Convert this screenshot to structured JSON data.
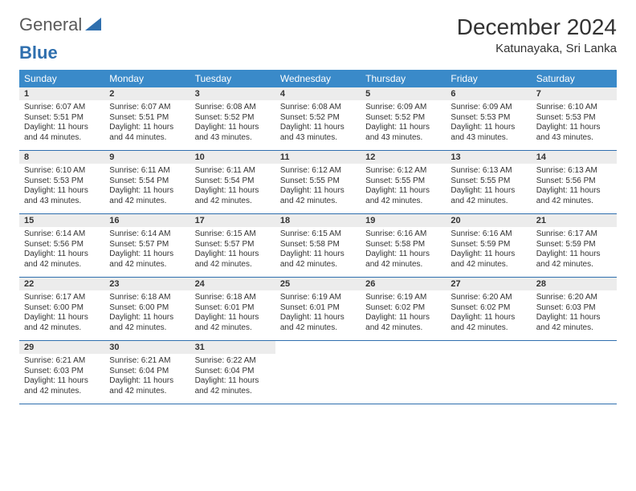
{
  "logo": {
    "text1": "General",
    "text2": "Blue"
  },
  "title": "December 2024",
  "location": "Katunayaka, Sri Lanka",
  "header_bg": "#3a8ac9",
  "daynum_bg": "#ececec",
  "border_color": "#2f6fae",
  "days_of_week": [
    "Sunday",
    "Monday",
    "Tuesday",
    "Wednesday",
    "Thursday",
    "Friday",
    "Saturday"
  ],
  "weeks": [
    [
      {
        "n": "1",
        "rise": "6:07 AM",
        "set": "5:51 PM",
        "dh": "11",
        "dm": "44"
      },
      {
        "n": "2",
        "rise": "6:07 AM",
        "set": "5:51 PM",
        "dh": "11",
        "dm": "44"
      },
      {
        "n": "3",
        "rise": "6:08 AM",
        "set": "5:52 PM",
        "dh": "11",
        "dm": "43"
      },
      {
        "n": "4",
        "rise": "6:08 AM",
        "set": "5:52 PM",
        "dh": "11",
        "dm": "43"
      },
      {
        "n": "5",
        "rise": "6:09 AM",
        "set": "5:52 PM",
        "dh": "11",
        "dm": "43"
      },
      {
        "n": "6",
        "rise": "6:09 AM",
        "set": "5:53 PM",
        "dh": "11",
        "dm": "43"
      },
      {
        "n": "7",
        "rise": "6:10 AM",
        "set": "5:53 PM",
        "dh": "11",
        "dm": "43"
      }
    ],
    [
      {
        "n": "8",
        "rise": "6:10 AM",
        "set": "5:53 PM",
        "dh": "11",
        "dm": "43"
      },
      {
        "n": "9",
        "rise": "6:11 AM",
        "set": "5:54 PM",
        "dh": "11",
        "dm": "42"
      },
      {
        "n": "10",
        "rise": "6:11 AM",
        "set": "5:54 PM",
        "dh": "11",
        "dm": "42"
      },
      {
        "n": "11",
        "rise": "6:12 AM",
        "set": "5:55 PM",
        "dh": "11",
        "dm": "42"
      },
      {
        "n": "12",
        "rise": "6:12 AM",
        "set": "5:55 PM",
        "dh": "11",
        "dm": "42"
      },
      {
        "n": "13",
        "rise": "6:13 AM",
        "set": "5:55 PM",
        "dh": "11",
        "dm": "42"
      },
      {
        "n": "14",
        "rise": "6:13 AM",
        "set": "5:56 PM",
        "dh": "11",
        "dm": "42"
      }
    ],
    [
      {
        "n": "15",
        "rise": "6:14 AM",
        "set": "5:56 PM",
        "dh": "11",
        "dm": "42"
      },
      {
        "n": "16",
        "rise": "6:14 AM",
        "set": "5:57 PM",
        "dh": "11",
        "dm": "42"
      },
      {
        "n": "17",
        "rise": "6:15 AM",
        "set": "5:57 PM",
        "dh": "11",
        "dm": "42"
      },
      {
        "n": "18",
        "rise": "6:15 AM",
        "set": "5:58 PM",
        "dh": "11",
        "dm": "42"
      },
      {
        "n": "19",
        "rise": "6:16 AM",
        "set": "5:58 PM",
        "dh": "11",
        "dm": "42"
      },
      {
        "n": "20",
        "rise": "6:16 AM",
        "set": "5:59 PM",
        "dh": "11",
        "dm": "42"
      },
      {
        "n": "21",
        "rise": "6:17 AM",
        "set": "5:59 PM",
        "dh": "11",
        "dm": "42"
      }
    ],
    [
      {
        "n": "22",
        "rise": "6:17 AM",
        "set": "6:00 PM",
        "dh": "11",
        "dm": "42"
      },
      {
        "n": "23",
        "rise": "6:18 AM",
        "set": "6:00 PM",
        "dh": "11",
        "dm": "42"
      },
      {
        "n": "24",
        "rise": "6:18 AM",
        "set": "6:01 PM",
        "dh": "11",
        "dm": "42"
      },
      {
        "n": "25",
        "rise": "6:19 AM",
        "set": "6:01 PM",
        "dh": "11",
        "dm": "42"
      },
      {
        "n": "26",
        "rise": "6:19 AM",
        "set": "6:02 PM",
        "dh": "11",
        "dm": "42"
      },
      {
        "n": "27",
        "rise": "6:20 AM",
        "set": "6:02 PM",
        "dh": "11",
        "dm": "42"
      },
      {
        "n": "28",
        "rise": "6:20 AM",
        "set": "6:03 PM",
        "dh": "11",
        "dm": "42"
      }
    ],
    [
      {
        "n": "29",
        "rise": "6:21 AM",
        "set": "6:03 PM",
        "dh": "11",
        "dm": "42"
      },
      {
        "n": "30",
        "rise": "6:21 AM",
        "set": "6:04 PM",
        "dh": "11",
        "dm": "42"
      },
      {
        "n": "31",
        "rise": "6:22 AM",
        "set": "6:04 PM",
        "dh": "11",
        "dm": "42"
      },
      null,
      null,
      null,
      null
    ]
  ],
  "labels": {
    "sunrise": "Sunrise:",
    "sunset": "Sunset:",
    "daylight": "Daylight:",
    "hours": "hours",
    "and": "and",
    "minutes": "minutes."
  }
}
